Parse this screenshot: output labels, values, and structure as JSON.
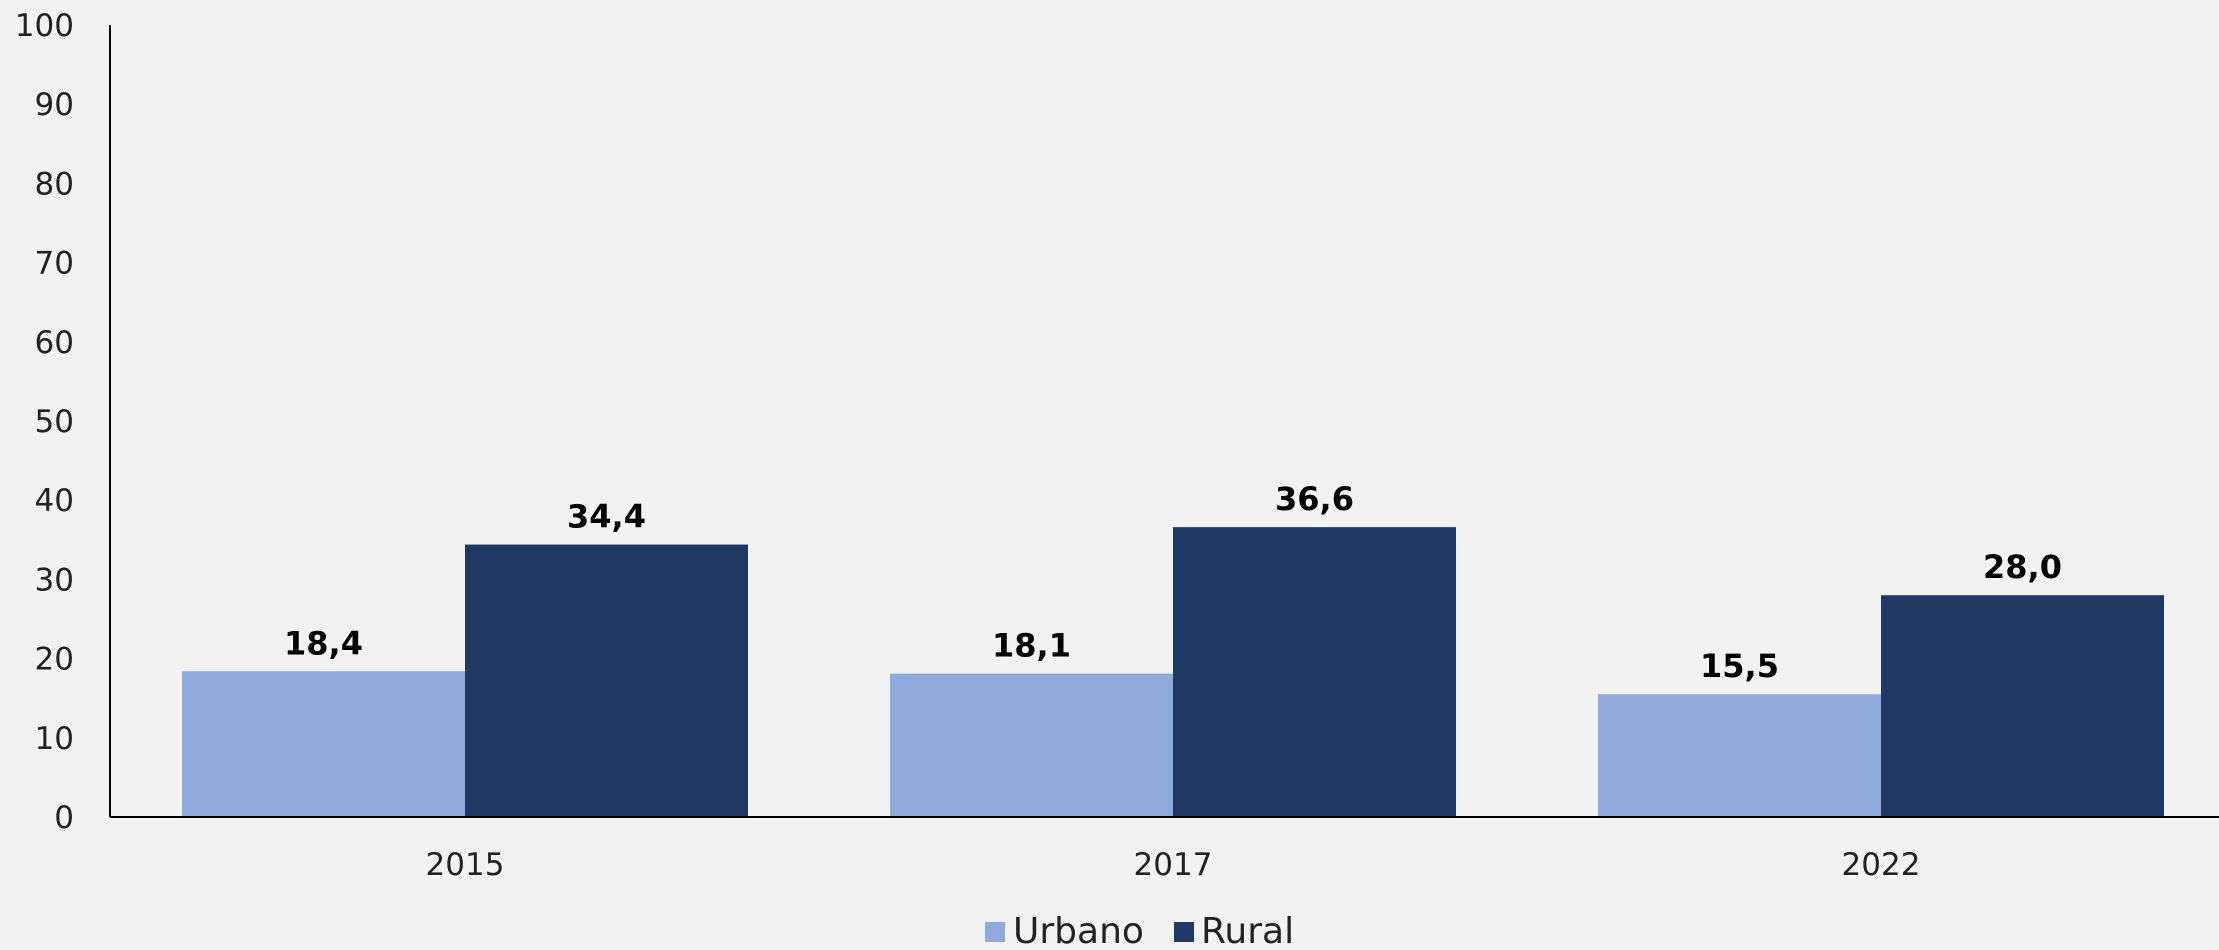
{
  "chart_data": {
    "type": "bar",
    "categories": [
      "2015",
      "2017",
      "2022"
    ],
    "series": [
      {
        "name": "Urbano",
        "values": [
          18.4,
          18.1,
          15.5
        ],
        "labels": [
          "18,4",
          "18,1",
          "15,5"
        ],
        "color": "#8faadc"
      },
      {
        "name": "Rural",
        "values": [
          34.4,
          36.6,
          28.0
        ],
        "labels": [
          "34,4",
          "36,6",
          "28,0"
        ],
        "color": "#203864"
      }
    ],
    "yticks": [
      "0",
      "10",
      "20",
      "30",
      "40",
      "50",
      "60",
      "70",
      "80",
      "90",
      "100"
    ],
    "ylim": [
      0,
      100
    ],
    "title": "",
    "xlabel": "",
    "ylabel": "",
    "grid": false,
    "legend_position": "bottom-center"
  }
}
